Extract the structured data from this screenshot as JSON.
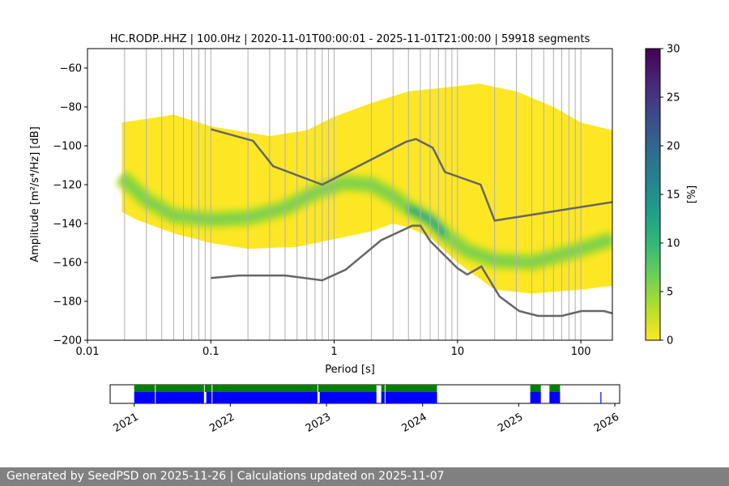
{
  "title": "HC.RODP..HHZ | 100.0Hz | 2020-11-01T00:00:01 - 2025-11-01T21:00:00 | 59918 segments",
  "footer": "Generated by SeedPSD on 2025-11-26 | Calculations updated on 2025-11-07",
  "chart_data": [
    {
      "type": "heatmap",
      "title": "HC.RODP..HHZ | 100.0Hz | 2020-11-01T00:00:01 - 2025-11-01T21:00:00 | 59918 segments",
      "xlabel": "Period [s]",
      "ylabel": "Amplitude [m²/s⁴/Hz] [dB]",
      "xscale": "log",
      "xlim": [
        0.01,
        180
      ],
      "ylim": [
        -200,
        -50
      ],
      "x_ticks": [
        0.01,
        0.1,
        1,
        10,
        100
      ],
      "x_tick_labels": [
        "0.01",
        "0.1",
        "1",
        "10",
        "100"
      ],
      "y_ticks": [
        -200,
        -180,
        -160,
        -140,
        -120,
        -100,
        -80,
        -60
      ],
      "y_tick_labels": [
        "−200",
        "−180",
        "−160",
        "−140",
        "−120",
        "−100",
        "−80",
        "−60"
      ],
      "grid": "vertical",
      "colorbar": {
        "label": "[%]",
        "range": [
          0,
          30
        ],
        "ticks": [
          0,
          5,
          10,
          15,
          20,
          25,
          30
        ],
        "tick_labels": [
          "0",
          "5",
          "10",
          "15",
          "20",
          "25",
          "30"
        ],
        "colormap": [
          "#fde725",
          "#b5de2b",
          "#6ece58",
          "#35b779",
          "#1f9e89",
          "#26828e",
          "#31688e",
          "#3e4989",
          "#482878",
          "#440154"
        ]
      },
      "density": {
        "lower_envelope": [
          {
            "x": 0.019,
            "y": -134
          },
          {
            "x": 0.025,
            "y": -138
          },
          {
            "x": 0.05,
            "y": -145
          },
          {
            "x": 0.1,
            "y": -150
          },
          {
            "x": 0.2,
            "y": -153
          },
          {
            "x": 0.5,
            "y": -152
          },
          {
            "x": 1,
            "y": -148
          },
          {
            "x": 2,
            "y": -144
          },
          {
            "x": 3,
            "y": -140
          },
          {
            "x": 4,
            "y": -142
          },
          {
            "x": 6,
            "y": -147
          },
          {
            "x": 10,
            "y": -160
          },
          {
            "x": 20,
            "y": -174
          },
          {
            "x": 40,
            "y": -176
          },
          {
            "x": 100,
            "y": -174
          },
          {
            "x": 180,
            "y": -172
          }
        ],
        "upper_envelope": [
          {
            "x": 0.019,
            "y": -88
          },
          {
            "x": 0.05,
            "y": -84
          },
          {
            "x": 0.1,
            "y": -90
          },
          {
            "x": 0.3,
            "y": -95
          },
          {
            "x": 0.6,
            "y": -92
          },
          {
            "x": 1,
            "y": -85
          },
          {
            "x": 2,
            "y": -78
          },
          {
            "x": 4,
            "y": -72
          },
          {
            "x": 8,
            "y": -70
          },
          {
            "x": 15,
            "y": -68
          },
          {
            "x": 30,
            "y": -72
          },
          {
            "x": 60,
            "y": -80
          },
          {
            "x": 100,
            "y": -88
          },
          {
            "x": 180,
            "y": -92
          }
        ],
        "mode_curve": [
          {
            "x": 0.019,
            "y": -116
          },
          {
            "x": 0.03,
            "y": -128
          },
          {
            "x": 0.05,
            "y": -136
          },
          {
            "x": 0.1,
            "y": -138
          },
          {
            "x": 0.2,
            "y": -137
          },
          {
            "x": 0.4,
            "y": -132
          },
          {
            "x": 0.7,
            "y": -124
          },
          {
            "x": 1.2,
            "y": -119
          },
          {
            "x": 2,
            "y": -120
          },
          {
            "x": 3,
            "y": -126
          },
          {
            "x": 4,
            "y": -132
          },
          {
            "x": 6,
            "y": -138
          },
          {
            "x": 8,
            "y": -146
          },
          {
            "x": 12,
            "y": -154
          },
          {
            "x": 20,
            "y": -159
          },
          {
            "x": 40,
            "y": -160
          },
          {
            "x": 80,
            "y": -155
          },
          {
            "x": 180,
            "y": -148
          }
        ],
        "peak_percent": 12
      },
      "series": [
        {
          "name": "",
          "role": "NHNM",
          "color": "#666666",
          "points": [
            {
              "x": 0.1,
              "y": -91.5
            },
            {
              "x": 0.22,
              "y": -97.4
            },
            {
              "x": 0.32,
              "y": -110.5
            },
            {
              "x": 0.8,
              "y": -120
            },
            {
              "x": 3.8,
              "y": -98
            },
            {
              "x": 4.6,
              "y": -96.5
            },
            {
              "x": 6.3,
              "y": -101
            },
            {
              "x": 7.9,
              "y": -113.5
            },
            {
              "x": 15.4,
              "y": -120
            },
            {
              "x": 20,
              "y": -138.5
            },
            {
              "x": 354.8,
              "y": -126
            }
          ]
        },
        {
          "name": "",
          "role": "NLNM",
          "color": "#666666",
          "points": [
            {
              "x": 0.1,
              "y": -168
            },
            {
              "x": 0.17,
              "y": -166.7
            },
            {
              "x": 0.4,
              "y": -166.7
            },
            {
              "x": 0.8,
              "y": -169.2
            },
            {
              "x": 1.24,
              "y": -163.7
            },
            {
              "x": 2.4,
              "y": -148.6
            },
            {
              "x": 4.3,
              "y": -141.1
            },
            {
              "x": 5,
              "y": -141.1
            },
            {
              "x": 6,
              "y": -149
            },
            {
              "x": 10,
              "y": -163
            },
            {
              "x": 12,
              "y": -166.2
            },
            {
              "x": 15.6,
              "y": -162.1
            },
            {
              "x": 21.9,
              "y": -177.5
            },
            {
              "x": 31.6,
              "y": -185
            },
            {
              "x": 45,
              "y": -187.5
            },
            {
              "x": 70,
              "y": -187.5
            },
            {
              "x": 101,
              "y": -185
            },
            {
              "x": 154,
              "y": -185
            },
            {
              "x": 200,
              "y": -187
            }
          ]
        }
      ]
    },
    {
      "type": "bar",
      "role": "data availability timeline",
      "x_ticks": [
        "2021",
        "2022",
        "2023",
        "2024",
        "2025",
        "2026"
      ],
      "x_tick_values": [
        2021.0,
        2022.0,
        2023.0,
        2024.0,
        2025.0,
        2026.0
      ],
      "xlim": [
        2020.75,
        2026.05
      ],
      "series": [
        {
          "name": "",
          "color": "#008000",
          "intervals": [
            [
              2021.0,
              2023.52
            ],
            [
              2023.57,
              2024.15
            ],
            [
              2025.12,
              2025.23
            ],
            [
              2025.32,
              2025.43
            ]
          ]
        },
        {
          "name": "",
          "color": "#0000ff",
          "intervals": [
            [
              2021.0,
              2021.73
            ],
            [
              2021.75,
              2022.91
            ],
            [
              2022.93,
              2023.52
            ],
            [
              2023.57,
              2024.15
            ],
            [
              2025.12,
              2025.23
            ],
            [
              2025.32,
              2025.43
            ],
            [
              2025.85,
              2025.86
            ]
          ]
        }
      ],
      "gaps": [
        2021.22,
        2021.73,
        2021.81,
        2022.91,
        2023.61
      ]
    }
  ]
}
